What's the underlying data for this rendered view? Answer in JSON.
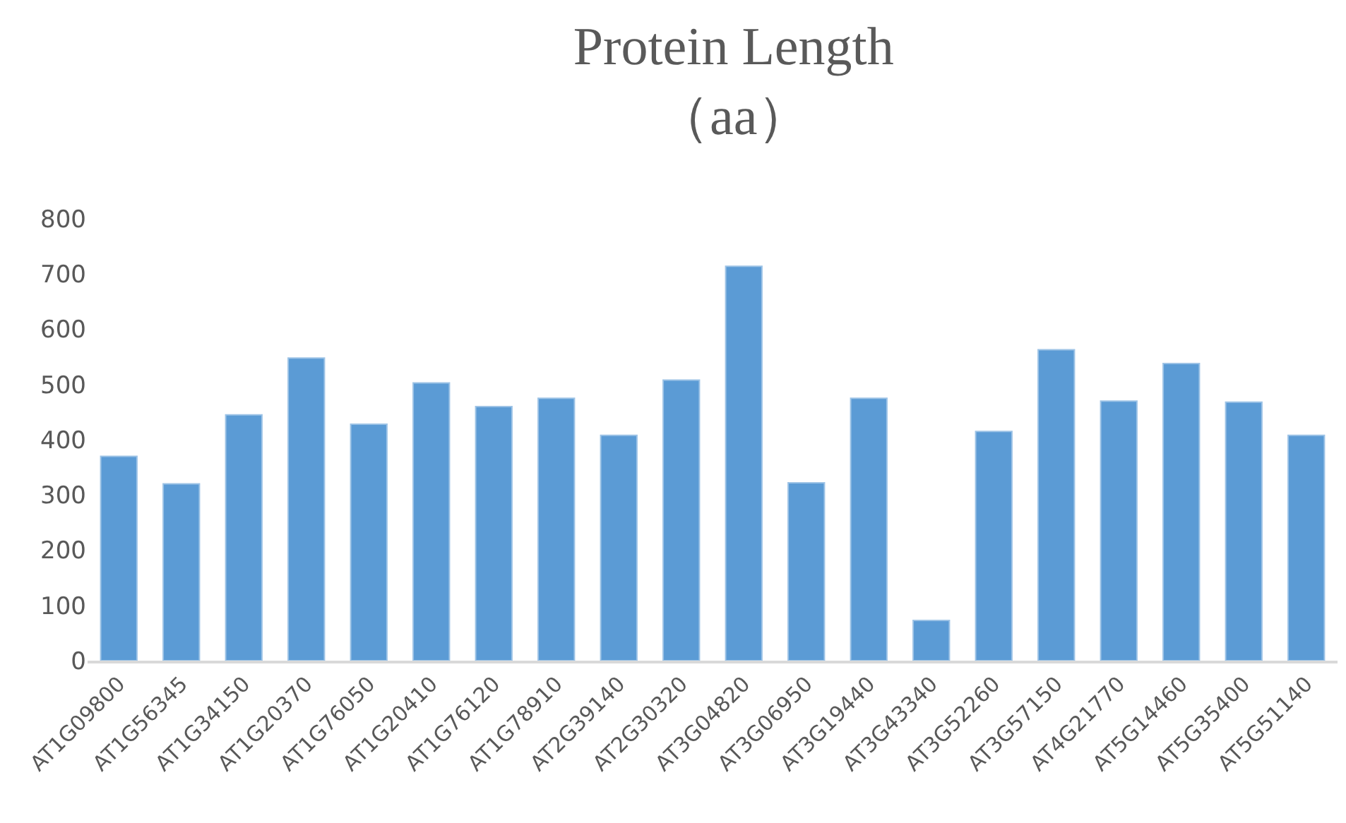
{
  "chart_data": {
    "type": "bar",
    "title": "Protein Length\n（aa）",
    "categories": [
      "AT1G09800",
      "AT1G56345",
      "AT1G34150",
      "AT1G20370",
      "AT1G76050",
      "AT1G20410",
      "AT1G76120",
      "AT1G78910",
      "AT2G39140",
      "AT2G30320",
      "AT3G04820",
      "AT3G06950",
      "AT3G19440",
      "AT3G43340",
      "AT3G52260",
      "AT3G57150",
      "AT4G21770",
      "AT5G14460",
      "AT5G35400",
      "AT5G51140"
    ],
    "values": [
      370,
      320,
      445,
      548,
      428,
      503,
      460,
      475,
      408,
      508,
      714,
      322,
      475,
      73,
      415,
      563,
      470,
      538,
      468,
      408
    ],
    "color": "#5b9bd5",
    "ylim": [
      0,
      800
    ],
    "yticks": [
      0,
      100,
      200,
      300,
      400,
      500,
      600,
      700,
      800
    ],
    "grid": false
  }
}
